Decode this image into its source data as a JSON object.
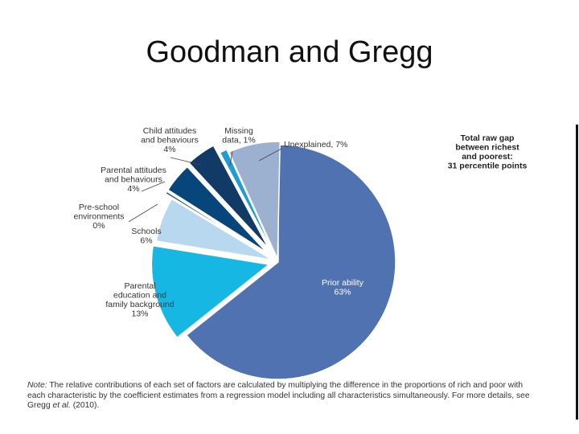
{
  "slide": {
    "title": "Goodman and Gregg"
  },
  "chart_data": {
    "type": "pie",
    "title": "",
    "total_annotation": [
      "Total raw gap",
      "between richest",
      "and poorest:",
      "31 percentile points"
    ],
    "slices": [
      {
        "label": [
          "Prior ability"
        ],
        "value_text": "63%",
        "value": 63,
        "color": "#5172b1"
      },
      {
        "label": [
          "Parental",
          "education and",
          "family background"
        ],
        "value_text": "13%",
        "value": 13,
        "color": "#17b7e4"
      },
      {
        "label": [
          "Schools"
        ],
        "value_text": "6%",
        "value": 6,
        "color": "#b8d8ef"
      },
      {
        "label": [
          "Pre-school",
          "environments"
        ],
        "value_text": "0%",
        "value": 0,
        "color": "#22507e"
      },
      {
        "label": [
          "Parental attitudes",
          "and behaviours"
        ],
        "value_text": "4%",
        "value": 4,
        "color": "#07467a"
      },
      {
        "label": [
          "Child attitudes",
          "and behaviours"
        ],
        "value_text": "4%",
        "value": 4,
        "color": "#123a67"
      },
      {
        "label": [
          "Missing",
          "data,"
        ],
        "value_text": "1%",
        "value": 1,
        "color": "#1f9bd7"
      },
      {
        "label": [
          "Unexplained,"
        ],
        "value_text": "7%",
        "value": 7,
        "color": "#9cb0cf"
      }
    ]
  },
  "note": {
    "label": "Note:",
    "text": "The relative contributions of each set of factors are calculated by multiplying the difference in the proportions of rich and poor with each characteristic by the coefficient estimates from a regression model including all characteristics simultaneously. For more details, see Gregg",
    "et_al": "et al.",
    "tail": "(2010)."
  }
}
